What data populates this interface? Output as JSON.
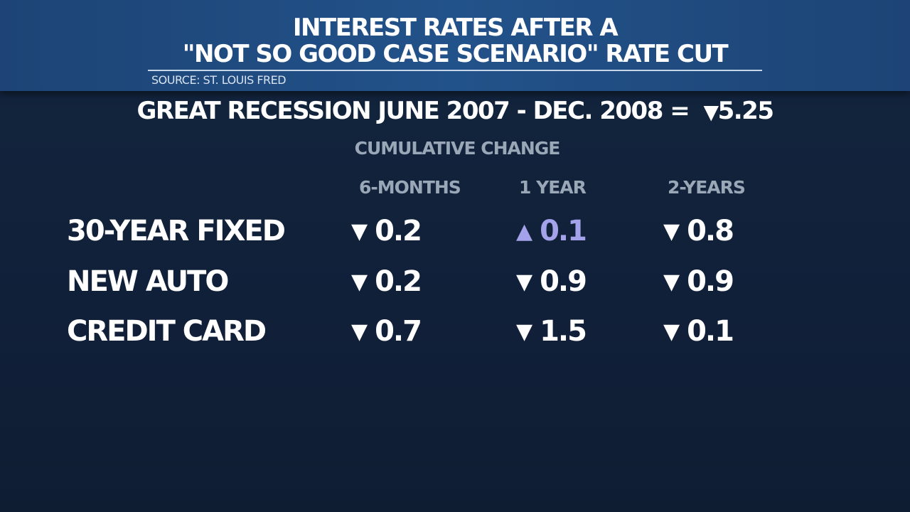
{
  "header": {
    "title_line1": "INTEREST RATES AFTER A",
    "title_line2": "\"NOT SO GOOD CASE SCENARIO\" RATE CUT",
    "source": "SOURCE: ST. LOUIS FRED"
  },
  "subtitle": {
    "text": "GREAT RECESSION JUNE 2007 - DEC. 2008 =",
    "arrow": "▼",
    "value": "5.25"
  },
  "colors": {
    "header_bg": "#22528a",
    "background": "#12233c",
    "text": "#ffffff",
    "muted": "#9aa7b7",
    "increase": "#a3a2ea"
  },
  "chart_data": {
    "type": "table",
    "title": "CUMULATIVE CHANGE",
    "columns": [
      "6-MONTHS",
      "1 YEAR",
      "2-YEARS"
    ],
    "rows": [
      {
        "label": "30-YEAR FIXED",
        "cells": [
          {
            "dir": "down",
            "arrow": "▼",
            "value": "0.2"
          },
          {
            "dir": "up",
            "arrow": "▲",
            "value": "0.1"
          },
          {
            "dir": "down",
            "arrow": "▼",
            "value": "0.8"
          }
        ]
      },
      {
        "label": "NEW AUTO",
        "cells": [
          {
            "dir": "down",
            "arrow": "▼",
            "value": "0.2"
          },
          {
            "dir": "down",
            "arrow": "▼",
            "value": "0.9"
          },
          {
            "dir": "down",
            "arrow": "▼",
            "value": "0.9"
          }
        ]
      },
      {
        "label": "CREDIT CARD",
        "cells": [
          {
            "dir": "down",
            "arrow": "▼",
            "value": "0.7"
          },
          {
            "dir": "down",
            "arrow": "▼",
            "value": "1.5"
          },
          {
            "dir": "down",
            "arrow": "▼",
            "value": "0.1"
          }
        ]
      }
    ]
  }
}
